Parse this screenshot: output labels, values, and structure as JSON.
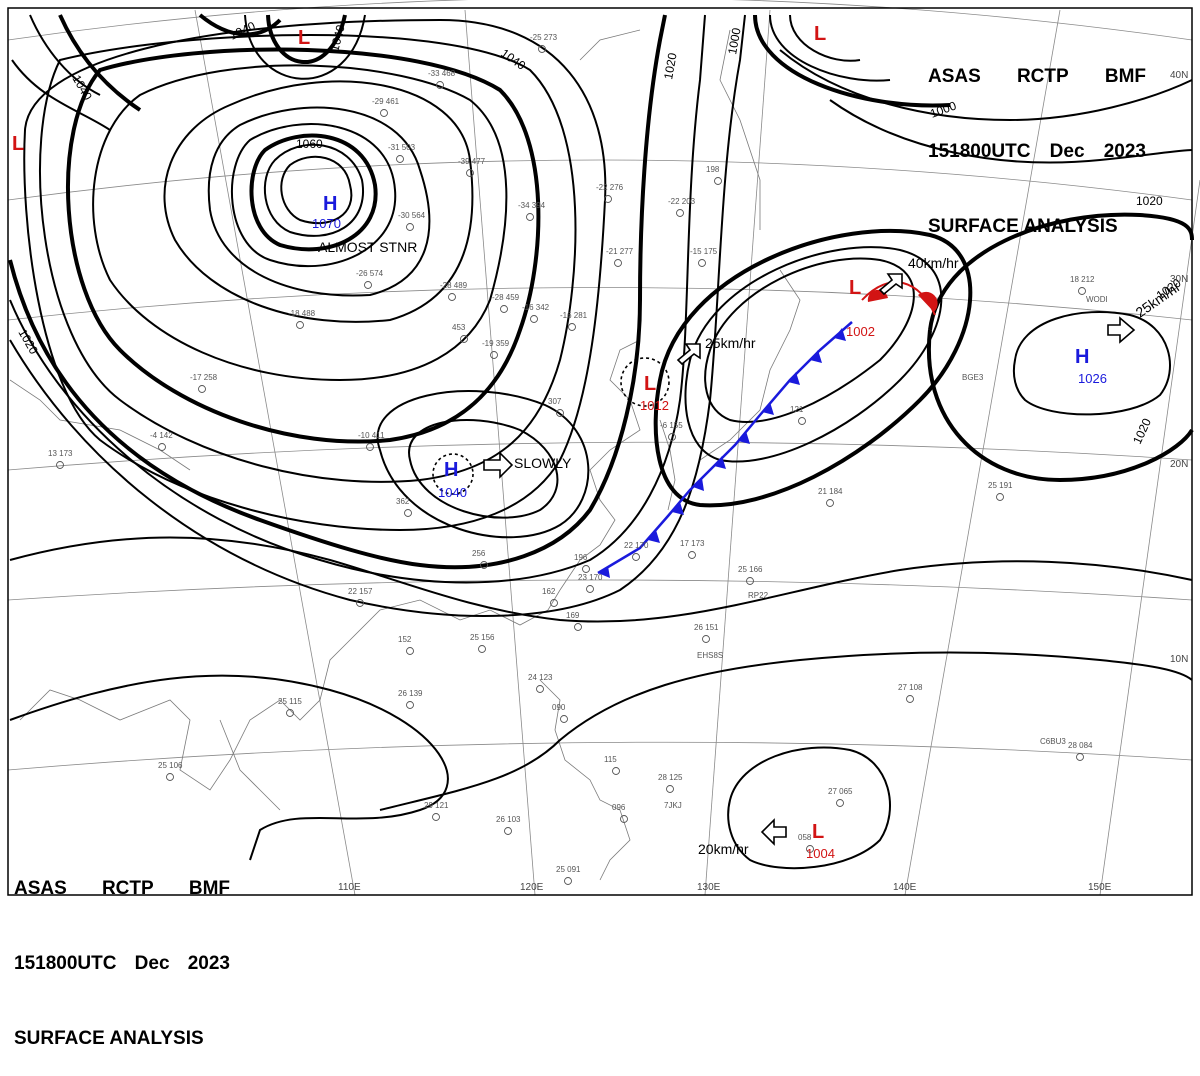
{
  "header": {
    "line1": [
      "ASAS",
      "RCTP",
      "BMF"
    ],
    "line2": [
      "151800UTC",
      "Dec",
      "2023"
    ],
    "line3": "SURFACE ANALYSIS"
  },
  "colors": {
    "high": "#1a1adc",
    "low": "#d21414",
    "cold_front": "#1a1adc",
    "warm_front": "#d21414",
    "isobar": "#000000"
  },
  "isobar_labels": [
    "1040",
    "1040",
    "1040",
    "1060",
    "1040",
    "1020",
    "1000",
    "1000",
    "1020",
    "1020",
    "1020",
    "1020"
  ],
  "pressure_centers": [
    {
      "type": "H",
      "value": "1070",
      "motion": "ALMOST STNR"
    },
    {
      "type": "H",
      "value": "1040",
      "motion": "SLOWLY"
    },
    {
      "type": "H",
      "value": "1026",
      "motion": "25km/hr"
    },
    {
      "type": "L",
      "value": "1012",
      "motion": "25km/hr"
    },
    {
      "type": "L",
      "value": "1002",
      "motion": "40km/hr"
    },
    {
      "type": "L",
      "value": "1004",
      "motion": "20km/hr"
    },
    {
      "type": "L",
      "value": ""
    },
    {
      "type": "L",
      "value": ""
    },
    {
      "type": "L",
      "value": ""
    }
  ],
  "grid_labels": {
    "lon": [
      "110E",
      "120E",
      "130E",
      "140E",
      "150E"
    ],
    "lat": [
      "40N",
      "30N",
      "20N",
      "10N"
    ]
  },
  "stations": [
    {
      "id": "s1",
      "label": "-33  468"
    },
    {
      "id": "s2",
      "label": "-29  461"
    },
    {
      "id": "s3",
      "label": "-31  503"
    },
    {
      "id": "s4",
      "label": "-39  477"
    },
    {
      "id": "s5",
      "label": "-30  564"
    },
    {
      "id": "s6",
      "label": "-34  394"
    },
    {
      "id": "s7",
      "label": "-25  273"
    },
    {
      "id": "s8",
      "label": "-22  276"
    },
    {
      "id": "s9",
      "label": "-28  489"
    },
    {
      "id": "s10",
      "label": "-18  488"
    },
    {
      "id": "s11",
      "label": "-26  574"
    },
    {
      "id": "s12",
      "label": "-28  459"
    },
    {
      "id": "s13",
      "label": "-16  342"
    },
    {
      "id": "s14",
      "label": "-16  281"
    },
    {
      "id": "s15",
      "label": "-15  175"
    },
    {
      "id": "s16",
      "label": "-21  277"
    },
    {
      "id": "s17",
      "label": "-22  203"
    },
    {
      "id": "s18",
      "label": "198"
    },
    {
      "id": "s19",
      "label": "-17  258"
    },
    {
      "id": "s20",
      "label": "-4  142"
    },
    {
      "id": "s21",
      "label": "13  173"
    },
    {
      "id": "s22",
      "label": "-10  411"
    },
    {
      "id": "s23",
      "label": "-19  359"
    },
    {
      "id": "s24",
      "label": "307"
    },
    {
      "id": "s25",
      "label": "453"
    },
    {
      "id": "s26",
      "label": "362"
    },
    {
      "id": "s27",
      "label": "256"
    },
    {
      "id": "s28",
      "label": "22  157"
    },
    {
      "id": "s29",
      "label": "152"
    },
    {
      "id": "s30",
      "label": "25  156"
    },
    {
      "id": "s31",
      "label": "169"
    },
    {
      "id": "s32",
      "label": "162"
    },
    {
      "id": "s33",
      "label": "196"
    },
    {
      "id": "s34",
      "label": "23  170"
    },
    {
      "id": "s35",
      "label": "22  170"
    },
    {
      "id": "s36",
      "label": "17  173"
    },
    {
      "id": "s37",
      "label": "25  166"
    },
    {
      "id": "s38",
      "label": "26  151"
    },
    {
      "id": "s39",
      "label": "21  184"
    },
    {
      "id": "s40",
      "label": "25  191"
    },
    {
      "id": "s41",
      "label": "18  212"
    },
    {
      "id": "s42",
      "label": "121"
    },
    {
      "id": "s43",
      "label": "26  139"
    },
    {
      "id": "s44",
      "label": "25  115"
    },
    {
      "id": "s45",
      "label": "25  106"
    },
    {
      "id": "s46",
      "label": "29  121"
    },
    {
      "id": "s47",
      "label": "26  103"
    },
    {
      "id": "s48",
      "label": "24  123"
    },
    {
      "id": "s49",
      "label": "090"
    },
    {
      "id": "s50",
      "label": "115"
    },
    {
      "id": "s51",
      "label": "28  125"
    },
    {
      "id": "s52",
      "label": "27  108"
    },
    {
      "id": "s53",
      "label": "28  084"
    },
    {
      "id": "s54",
      "label": "27  065"
    },
    {
      "id": "s55",
      "label": "058"
    },
    {
      "id": "s56",
      "label": "25  091"
    },
    {
      "id": "s57",
      "label": "096"
    },
    {
      "id": "s58",
      "label": "-6  155"
    }
  ],
  "ship_labels": [
    "WODI",
    "BGE3",
    "EHS8S",
    "RP22",
    "7JKJ",
    "C6BU3"
  ]
}
